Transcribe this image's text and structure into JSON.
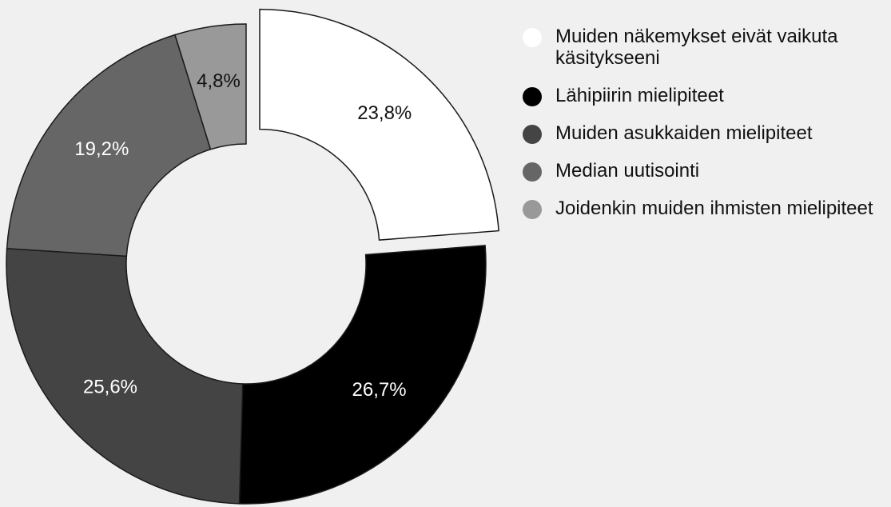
{
  "chart_data": {
    "type": "donut",
    "categories": [
      "Muiden näkemykset eivät vaikuta käsitykseeni",
      "Lähipiirin mielipiteet",
      "Muiden asukkaiden mielipiteet",
      "Median uutisointi",
      "Joidenkin muiden ihmisten mielipiteet"
    ],
    "values": [
      23.8,
      26.7,
      25.6,
      19.2,
      4.8
    ],
    "value_labels": [
      "23,8%",
      "26,7%",
      "25,6%",
      "19,2%",
      "4,8%"
    ],
    "colors": [
      "#ffffff",
      "#000000",
      "#444444",
      "#666666",
      "#999999"
    ],
    "legend": "right"
  }
}
